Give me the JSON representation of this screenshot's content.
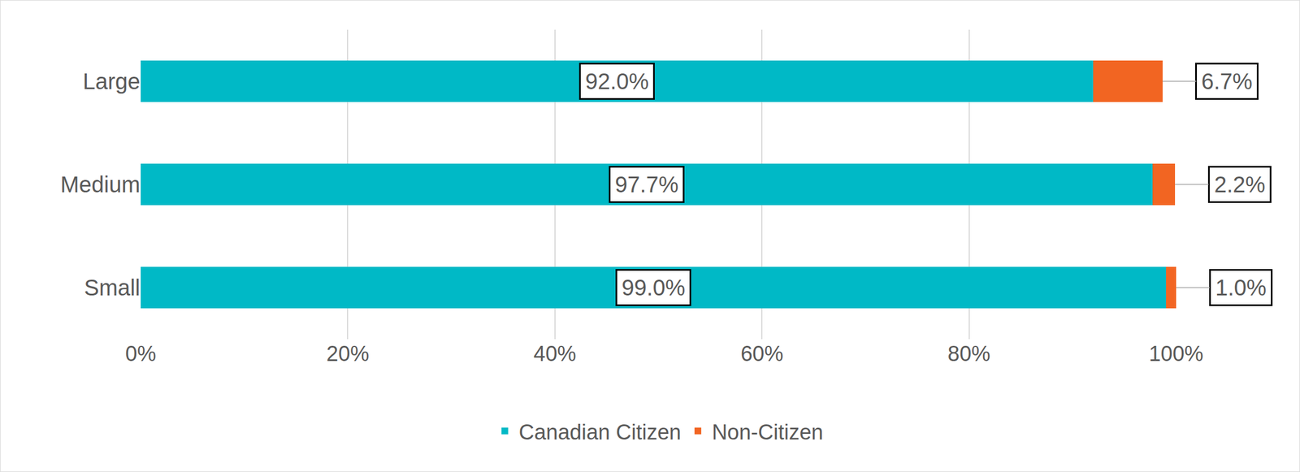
{
  "chart_data": {
    "type": "bar",
    "orientation": "horizontal",
    "stacked": true,
    "data_labels": true,
    "grid": true,
    "legend": "bottom",
    "categories": [
      "Large",
      "Medium",
      "Small"
    ],
    "series": [
      {
        "name": "Canadian Citizen",
        "color": "#00b9c6",
        "values": [
          92.0,
          97.7,
          99.0
        ],
        "value_labels": [
          "92.0%",
          "97.7%",
          "99.0%"
        ]
      },
      {
        "name": "Non-Citizen",
        "color": "#f26522",
        "values": [
          6.7,
          2.2,
          1.0
        ],
        "value_labels": [
          "6.7%",
          "2.2%",
          "1.0%"
        ]
      }
    ],
    "xlim": [
      0,
      100
    ],
    "xticks": [
      {
        "value": 0,
        "label": "0%"
      },
      {
        "value": 20,
        "label": "20%"
      },
      {
        "value": 40,
        "label": "40%"
      },
      {
        "value": 60,
        "label": "60%"
      },
      {
        "value": 80,
        "label": "80%"
      },
      {
        "value": 100,
        "label": "100%"
      }
    ]
  }
}
